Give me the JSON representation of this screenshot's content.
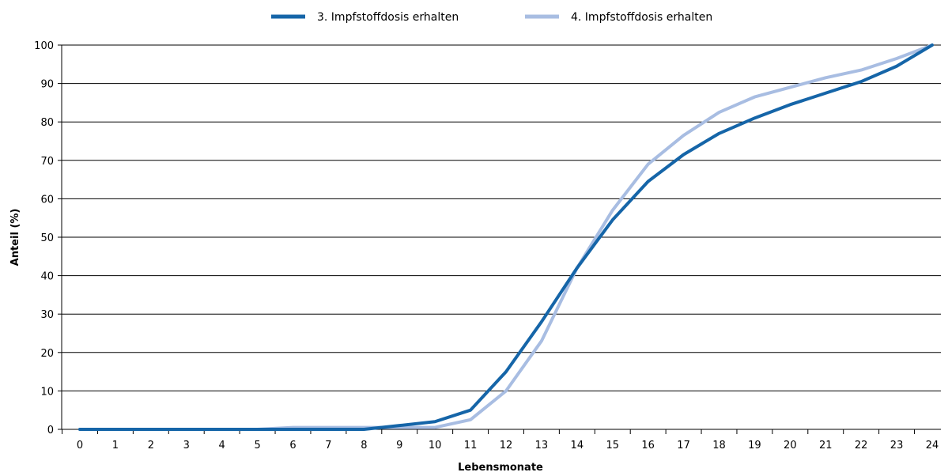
{
  "chart_data": {
    "type": "line",
    "title": "",
    "xlabel": "Lebensmonate",
    "ylabel": "Anteil (%)",
    "x": [
      0,
      1,
      2,
      3,
      4,
      5,
      6,
      7,
      8,
      9,
      10,
      11,
      12,
      13,
      14,
      15,
      16,
      17,
      18,
      19,
      20,
      21,
      22,
      23,
      24
    ],
    "ylim": [
      0,
      100
    ],
    "yticks": [
      0,
      10,
      20,
      30,
      40,
      50,
      60,
      70,
      80,
      90,
      100
    ],
    "grid": "horizontal",
    "legend_position": "top",
    "series": [
      {
        "name": "3. Impfstoffdosis erhalten",
        "color": "#1565a8",
        "values": [
          0,
          0,
          0,
          0,
          0,
          0,
          0,
          0,
          0,
          1,
          2,
          5,
          15,
          28,
          42,
          54.5,
          64.5,
          71.5,
          77,
          81,
          84.5,
          87.5,
          90.5,
          94.5,
          100
        ]
      },
      {
        "name": "4. Impfstoffdosis erhalten",
        "color": "#a8bde2",
        "values": [
          0,
          0,
          0,
          0,
          0,
          0,
          0.5,
          0.5,
          0.5,
          0.5,
          0.5,
          2.5,
          10,
          23,
          42,
          57,
          69,
          76.5,
          82.5,
          86.5,
          89,
          91.5,
          93.5,
          96.5,
          100
        ]
      }
    ]
  }
}
